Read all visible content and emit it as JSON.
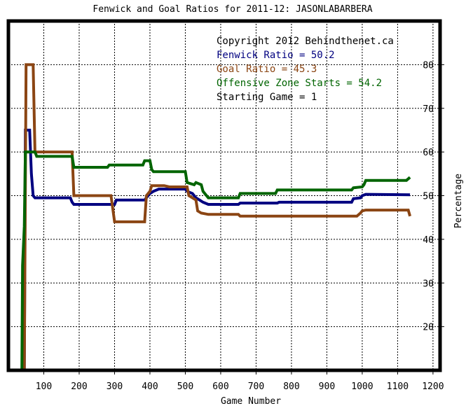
{
  "chart_data": {
    "type": "line",
    "title": "Fenwick and Goal Ratios for 2011-12: JASONLABARBERA",
    "xlabel": "Game Number",
    "ylabel": "Percentage",
    "xlim": [
      0,
      1220
    ],
    "ylim": [
      10,
      90
    ],
    "x_ticks": [
      100,
      200,
      300,
      400,
      500,
      600,
      700,
      800,
      900,
      1000,
      1100,
      1200
    ],
    "y_ticks": [
      20,
      30,
      40,
      50,
      60,
      70,
      80
    ],
    "y_axis_side": "right",
    "grid": true,
    "legend_position": "top-right",
    "annotations": [
      {
        "text": "Copyright 2012 Behindthenet.ca",
        "color": "#000000"
      },
      {
        "text": "Starting Game = 1",
        "color": "#000000"
      }
    ],
    "series": [
      {
        "name": "Fenwick Ratio = 50.2",
        "color": "#000080",
        "points": [
          [
            45,
            10
          ],
          [
            48,
            65
          ],
          [
            60,
            65
          ],
          [
            65,
            55
          ],
          [
            70,
            50
          ],
          [
            75,
            49.5
          ],
          [
            175,
            49.5
          ],
          [
            180,
            48.5
          ],
          [
            185,
            48
          ],
          [
            300,
            48
          ],
          [
            305,
            49
          ],
          [
            385,
            49
          ],
          [
            395,
            50
          ],
          [
            400,
            50.5
          ],
          [
            410,
            51
          ],
          [
            425,
            51.5
          ],
          [
            500,
            51.5
          ],
          [
            505,
            51
          ],
          [
            520,
            50.5
          ],
          [
            530,
            49.5
          ],
          [
            540,
            49
          ],
          [
            550,
            48.5
          ],
          [
            565,
            48
          ],
          [
            650,
            48
          ],
          [
            655,
            48.3
          ],
          [
            760,
            48.3
          ],
          [
            765,
            48.5
          ],
          [
            970,
            48.5
          ],
          [
            975,
            49.3
          ],
          [
            995,
            49.5
          ],
          [
            1000,
            50
          ],
          [
            1010,
            50.3
          ],
          [
            1135,
            50.2
          ]
        ]
      },
      {
        "name": "Goal Ratio = 45.3",
        "color": "#8b4513",
        "points": [
          [
            45,
            10
          ],
          [
            50,
            80
          ],
          [
            70,
            80
          ],
          [
            75,
            60
          ],
          [
            180,
            60
          ],
          [
            185,
            50
          ],
          [
            290,
            50
          ],
          [
            300,
            44
          ],
          [
            385,
            44
          ],
          [
            390,
            50
          ],
          [
            400,
            51
          ],
          [
            405,
            52.3
          ],
          [
            440,
            52.3
          ],
          [
            455,
            52
          ],
          [
            505,
            52
          ],
          [
            510,
            50
          ],
          [
            530,
            49
          ],
          [
            535,
            46.5
          ],
          [
            545,
            46
          ],
          [
            565,
            45.7
          ],
          [
            650,
            45.7
          ],
          [
            655,
            45.3
          ],
          [
            985,
            45.3
          ],
          [
            995,
            46
          ],
          [
            1000,
            46.5
          ],
          [
            1010,
            46.7
          ],
          [
            1130,
            46.7
          ],
          [
            1135,
            45.3
          ]
        ]
      },
      {
        "name": "Offensive Zone Starts = 54.2",
        "color": "#006400",
        "points": [
          [
            38,
            10
          ],
          [
            40,
            34
          ],
          [
            45,
            43
          ],
          [
            48,
            60
          ],
          [
            75,
            60
          ],
          [
            80,
            59
          ],
          [
            180,
            59
          ],
          [
            185,
            56.5
          ],
          [
            280,
            56.5
          ],
          [
            285,
            57
          ],
          [
            380,
            57
          ],
          [
            385,
            58
          ],
          [
            400,
            58
          ],
          [
            405,
            56
          ],
          [
            410,
            55.5
          ],
          [
            500,
            55.5
          ],
          [
            505,
            53
          ],
          [
            525,
            52.5
          ],
          [
            530,
            53
          ],
          [
            545,
            52.5
          ],
          [
            550,
            51
          ],
          [
            565,
            49.5
          ],
          [
            650,
            49.5
          ],
          [
            655,
            50.5
          ],
          [
            755,
            50.5
          ],
          [
            760,
            51.3
          ],
          [
            970,
            51.3
          ],
          [
            975,
            51.8
          ],
          [
            1000,
            52
          ],
          [
            1005,
            52.5
          ],
          [
            1010,
            53.5
          ],
          [
            1125,
            53.5
          ],
          [
            1135,
            54.2
          ]
        ]
      }
    ]
  }
}
